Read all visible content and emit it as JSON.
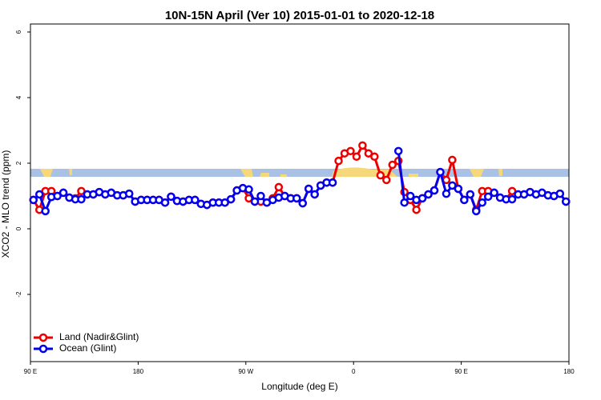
{
  "chart_data": {
    "type": "line",
    "title": "10N-15N April (Ver 10)   2015-01-01 to 2020-12-18",
    "x_label": "Longitude (deg E)",
    "y_label": "XCO2 - MLO trend (ppm)",
    "x": [
      92.5,
      97.5,
      102.5,
      107.5,
      112.5,
      117.5,
      122.5,
      127.5,
      132.5,
      137.5,
      142.5,
      147.5,
      152.5,
      157.5,
      162.5,
      167.5,
      172.5,
      177.5,
      182.5,
      187.5,
      192.5,
      197.5,
      202.5,
      207.5,
      212.5,
      217.5,
      222.5,
      227.5,
      232.5,
      237.5,
      242.5,
      247.5,
      252.5,
      257.5,
      262.5,
      267.5,
      272.5,
      277.5,
      282.5,
      287.5,
      292.5,
      297.5,
      302.5,
      307.5,
      312.5,
      317.5,
      322.5,
      327.5,
      332.5,
      337.5,
      342.5,
      347.5,
      352.5,
      357.5,
      362.5,
      367.5,
      372.5,
      377.5,
      382.5,
      387.5,
      392.5,
      397.5,
      402.5,
      407.5,
      412.5,
      417.5,
      422.5,
      427.5,
      432.5,
      437.5,
      442.5,
      447.5,
      452.5,
      457.5,
      462.5,
      467.5,
      472.5,
      477.5,
      482.5,
      487.5,
      492.5,
      497.5,
      502.5,
      507.5,
      512.5,
      517.5,
      522.5,
      527.5,
      532.5,
      537.5
    ],
    "series": [
      {
        "name": "Land (Nadir&Glint)",
        "color": "#ee0000",
        "values": [
          0.88,
          0.58,
          1.15,
          1.15,
          1.0,
          1.1,
          0.95,
          0.93,
          1.15,
          1.05,
          1.05,
          1.12,
          1.05,
          1.1,
          1.02,
          1.02,
          1.07,
          0.83,
          0.88,
          0.88,
          0.88,
          0.88,
          0.8,
          0.98,
          0.85,
          0.83,
          0.88,
          0.88,
          0.76,
          0.73,
          0.8,
          0.8,
          0.8,
          0.9,
          1.17,
          1.24,
          0.93,
          0.83,
          0.83,
          0.8,
          0.93,
          1.27,
          1.0,
          0.93,
          0.93,
          0.78,
          1.22,
          1.05,
          1.32,
          1.41,
          1.41,
          2.07,
          2.3,
          2.37,
          2.2,
          2.54,
          2.3,
          2.2,
          1.63,
          1.49,
          1.95,
          2.07,
          1.12,
          0.88,
          0.58,
          0.93,
          1.05,
          1.17,
          1.73,
          1.49,
          2.1,
          1.22,
          0.88,
          1.05,
          0.58,
          1.15,
          1.15,
          1.1,
          0.95,
          0.9,
          1.15,
          1.05,
          1.05,
          1.12,
          1.05,
          1.1,
          1.02,
          1.0,
          1.07,
          0.83
        ]
      },
      {
        "name": "Ocean (Glint)",
        "color": "#0000ee",
        "values": [
          0.88,
          1.05,
          0.54,
          0.97,
          1.0,
          1.1,
          0.95,
          0.9,
          0.9,
          1.05,
          1.05,
          1.12,
          1.05,
          1.1,
          1.02,
          1.02,
          1.07,
          0.83,
          0.88,
          0.88,
          0.88,
          0.88,
          0.8,
          0.98,
          0.85,
          0.83,
          0.88,
          0.88,
          0.76,
          0.73,
          0.8,
          0.8,
          0.8,
          0.9,
          1.17,
          1.24,
          1.2,
          0.83,
          1.0,
          0.8,
          0.88,
          0.95,
          1.0,
          0.93,
          0.93,
          0.78,
          1.22,
          1.05,
          1.32,
          1.41,
          1.41,
          null,
          null,
          null,
          null,
          null,
          null,
          null,
          null,
          null,
          null,
          2.37,
          0.8,
          1.0,
          0.88,
          0.93,
          1.05,
          1.17,
          1.73,
          1.07,
          1.32,
          1.22,
          0.88,
          1.05,
          0.54,
          0.8,
          0.98,
          1.1,
          0.95,
          0.9,
          0.9,
          1.05,
          1.05,
          1.12,
          1.05,
          1.1,
          1.02,
          1.0,
          1.07,
          0.83
        ]
      }
    ],
    "xlim": [
      90,
      540
    ],
    "xticks": [
      {
        "value": 90,
        "label": "90 E"
      },
      180,
      {
        "value": 270,
        "label": "90 W"
      },
      {
        "value": 360,
        "label": "0"
      },
      {
        "value": 450,
        "label": "90 E"
      },
      {
        "value": 540,
        "label": "180"
      }
    ],
    "ylim": [
      -4,
      6
    ],
    "yticks": [
      -2,
      0,
      2,
      4,
      6
    ],
    "legend": "bottom-left"
  }
}
